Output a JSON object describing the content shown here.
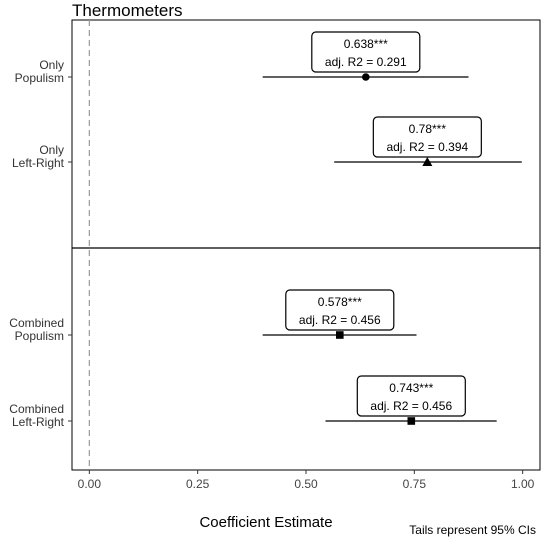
{
  "chart_data": {
    "type": "coefficient_plot",
    "title": "Thermometers",
    "xlabel": "Coefficient Estimate",
    "footnote": "Tails represent 95% CIs",
    "xlim": [
      -0.04,
      1.04
    ],
    "xticks": [
      0.0,
      0.25,
      0.5,
      0.75,
      1.0
    ],
    "xtick_labels": [
      "0.00",
      "0.25",
      "0.50",
      "0.75",
      "1.00"
    ],
    "reference_line": 0,
    "panels": [
      {
        "rows": [
          {
            "label": [
              "Only",
              "Populism"
            ],
            "estimate": 0.638,
            "ci": [
              0.4,
              0.875
            ],
            "marker": "circle",
            "estimate_label": "0.638***",
            "r2_label": "adj. R2 = 0.291"
          },
          {
            "label": [
              "Only",
              "Left-Right"
            ],
            "estimate": 0.78,
            "ci": [
              0.565,
              0.998
            ],
            "marker": "triangle",
            "estimate_label": "0.78***",
            "r2_label": "adj. R2 = 0.394"
          }
        ]
      },
      {
        "rows": [
          {
            "label": [
              "Combined",
              "Populism"
            ],
            "estimate": 0.578,
            "ci": [
              0.4,
              0.755
            ],
            "marker": "square",
            "estimate_label": "0.578***",
            "r2_label": "adj. R2 = 0.456"
          },
          {
            "label": [
              "Combined",
              "Left-Right"
            ],
            "estimate": 0.743,
            "ci": [
              0.545,
              0.94
            ],
            "marker": "square",
            "estimate_label": "0.743***",
            "r2_label": "adj. R2 = 0.456"
          }
        ]
      }
    ]
  }
}
